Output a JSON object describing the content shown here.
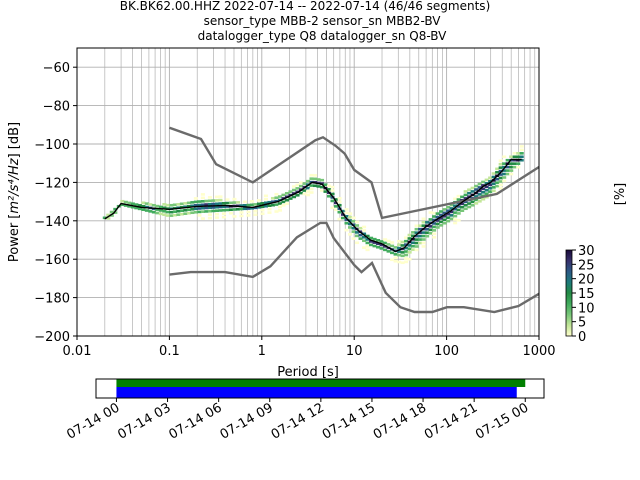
{
  "chart_data": {
    "type": "heatmap",
    "title_lines": [
      "BK.BK62.00.HHZ   2022-07-14 -- 2022-07-14  (46/46 segments)",
      "sensor_type MBB-2 sensor_sn MBB2-BV",
      "datalogger_type Q8 datalogger_sn Q8-BV"
    ],
    "xlabel": "Period [s]",
    "ylabel_prefix": "Power [",
    "ylabel_math": "m²/s⁴/Hz",
    "ylabel_suffix": "] [dB]",
    "xscale": "log",
    "xlim": [
      0.01,
      1000
    ],
    "ylim": [
      -200,
      -50
    ],
    "grid": true,
    "x_tick_values": [
      0.01,
      0.1,
      1,
      10,
      100,
      1000
    ],
    "x_tick_labels": [
      "0.01",
      "0.1",
      "1",
      "10",
      "100",
      "1000"
    ],
    "y_tick_values": [
      -60,
      -80,
      -100,
      -120,
      -140,
      -160,
      -180,
      -200
    ],
    "y_tick_labels": [
      "−60",
      "−80",
      "−100",
      "−120",
      "−140",
      "−160",
      "−180",
      "−200"
    ],
    "colorbar": {
      "label": "[%]",
      "range": [
        0,
        30
      ],
      "tick_values": [
        0,
        5,
        10,
        15,
        20,
        25,
        30
      ],
      "tick_labels": [
        "0",
        "5",
        "10",
        "15",
        "20",
        "25",
        "30"
      ],
      "colors": [
        "#ffffcc",
        "#c2e699",
        "#78c679",
        "#41ab5d",
        "#238b45",
        "#1d7a7a",
        "#2c5985",
        "#37306b",
        "#1a0a3a"
      ]
    },
    "colors": {
      "noise_model": "#6b6b6b",
      "mode_line": "#000000",
      "coverage_data": "#0000ff",
      "coverage_segments": "#008000"
    },
    "nhnm": [
      [
        0.1,
        -91.5
      ],
      [
        0.22,
        -97.4
      ],
      [
        0.32,
        -110.5
      ],
      [
        0.8,
        -120
      ],
      [
        3.8,
        -98
      ],
      [
        4.6,
        -96.5
      ],
      [
        6.3,
        -101
      ],
      [
        7.9,
        -105
      ],
      [
        10,
        -113.5
      ],
      [
        15.4,
        -120
      ],
      [
        20,
        -138.5
      ],
      [
        350,
        -126
      ],
      [
        1000,
        -112
      ]
    ],
    "nlnm": [
      [
        0.1,
        -168
      ],
      [
        0.17,
        -166.7
      ],
      [
        0.4,
        -166.7
      ],
      [
        0.8,
        -169.2
      ],
      [
        1.24,
        -163.7
      ],
      [
        2.4,
        -148.6
      ],
      [
        4.3,
        -141.1
      ],
      [
        5,
        -141.1
      ],
      [
        6,
        -149
      ],
      [
        10,
        -163
      ],
      [
        12,
        -166.7
      ],
      [
        15.6,
        -162
      ],
      [
        21.9,
        -177.5
      ],
      [
        31.6,
        -185
      ],
      [
        45,
        -187.5
      ],
      [
        70,
        -187.5
      ],
      [
        101,
        -185
      ],
      [
        154,
        -185
      ],
      [
        328,
        -187.5
      ],
      [
        600,
        -184.4
      ],
      [
        1000,
        -178
      ]
    ],
    "mode_curve": [
      [
        0.02,
        -139
      ],
      [
        0.025,
        -136
      ],
      [
        0.03,
        -131
      ],
      [
        0.05,
        -133
      ],
      [
        0.1,
        -134
      ],
      [
        0.2,
        -132.5
      ],
      [
        0.4,
        -132
      ],
      [
        0.8,
        -133
      ],
      [
        1.5,
        -130
      ],
      [
        2.5,
        -125
      ],
      [
        3.5,
        -120
      ],
      [
        4.5,
        -121
      ],
      [
        6,
        -128
      ],
      [
        8,
        -138
      ],
      [
        11,
        -145
      ],
      [
        15,
        -150
      ],
      [
        20,
        -152
      ],
      [
        28,
        -156
      ],
      [
        35,
        -154
      ],
      [
        45,
        -148
      ],
      [
        60,
        -143
      ],
      [
        80,
        -139
      ],
      [
        110,
        -135
      ],
      [
        150,
        -130
      ],
      [
        200,
        -126
      ],
      [
        250,
        -122
      ],
      [
        300,
        -120
      ],
      [
        400,
        -114
      ],
      [
        500,
        -108
      ],
      [
        650,
        -108
      ]
    ],
    "upper_envelope": [
      [
        0.02,
        -139
      ],
      [
        0.03,
        -129
      ],
      [
        0.1,
        -131
      ],
      [
        0.2,
        -128
      ],
      [
        0.3,
        -128.5
      ],
      [
        0.8,
        -131
      ],
      [
        1.5,
        -127
      ],
      [
        2.5,
        -122
      ],
      [
        3.5,
        -117
      ],
      [
        4.5,
        -118
      ],
      [
        6,
        -125
      ],
      [
        8,
        -135
      ],
      [
        11,
        -142
      ],
      [
        15,
        -148
      ],
      [
        20,
        -150
      ],
      [
        28,
        -153
      ],
      [
        35,
        -150
      ],
      [
        45,
        -144
      ],
      [
        60,
        -139
      ],
      [
        80,
        -135
      ],
      [
        110,
        -131
      ],
      [
        150,
        -125
      ],
      [
        200,
        -121
      ],
      [
        300,
        -117
      ],
      [
        400,
        -109
      ],
      [
        650,
        -103
      ]
    ],
    "lower_envelope": [
      [
        0.02,
        -140
      ],
      [
        0.03,
        -133
      ],
      [
        0.1,
        -139
      ],
      [
        0.2,
        -137
      ],
      [
        0.4,
        -136
      ],
      [
        0.8,
        -135
      ],
      [
        1.5,
        -133
      ],
      [
        2.5,
        -128
      ],
      [
        3.5,
        -123
      ],
      [
        4.5,
        -124
      ],
      [
        6,
        -132
      ],
      [
        8,
        -142
      ],
      [
        11,
        -150
      ],
      [
        15,
        -154
      ],
      [
        20,
        -156
      ],
      [
        28,
        -159
      ],
      [
        35,
        -160
      ],
      [
        45,
        -156
      ],
      [
        60,
        -150
      ],
      [
        80,
        -145
      ],
      [
        110,
        -141
      ],
      [
        150,
        -136
      ],
      [
        200,
        -133
      ],
      [
        300,
        -128
      ],
      [
        400,
        -120
      ],
      [
        650,
        -110
      ]
    ],
    "coverage": {
      "x_tick_labels": [
        "07-14 00",
        "07-14 03",
        "07-14 06",
        "07-14 09",
        "07-14 12",
        "07-14 15",
        "07-14 18",
        "07-14 21",
        "07-15 00"
      ],
      "x_tick_hours": [
        0,
        3,
        6,
        9,
        12,
        15,
        18,
        21,
        24
      ],
      "xlim_hours": [
        -1.2,
        25.1
      ],
      "data_bar_hours": [
        0,
        23.5
      ],
      "segments_bar_hours": [
        0,
        24.0
      ]
    }
  }
}
